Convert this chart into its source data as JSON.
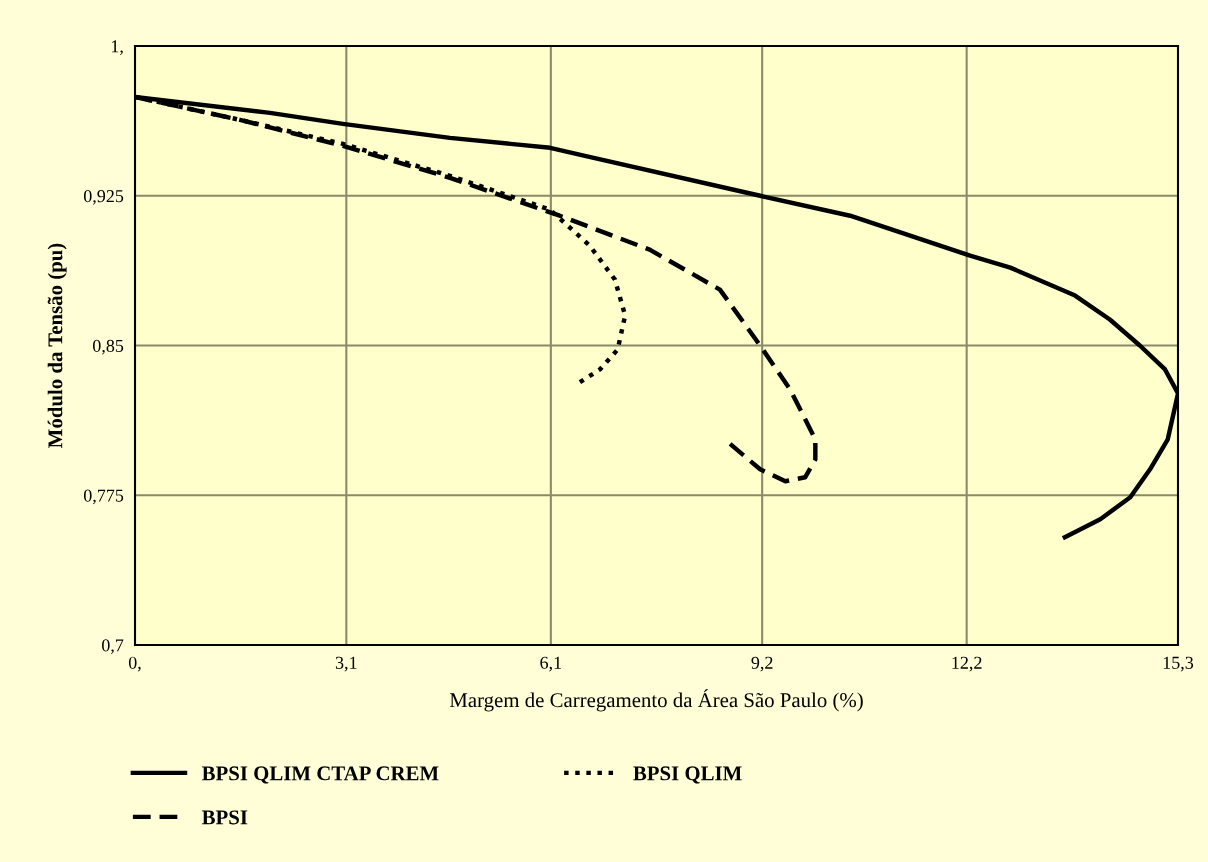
{
  "chart_data": {
    "type": "line",
    "xlabel": "Margem de Carregamento da Área São Paulo (%)",
    "ylabel": "Módulo da Tensão (pu)",
    "xlim": [
      0,
      15.3
    ],
    "ylim": [
      0.7,
      1
    ],
    "xticks": [
      {
        "value": 0,
        "label": "0,"
      },
      {
        "value": 3.1,
        "label": "3,1"
      },
      {
        "value": 6.1,
        "label": "6,1"
      },
      {
        "value": 9.2,
        "label": "9,2"
      },
      {
        "value": 12.2,
        "label": "12,2"
      },
      {
        "value": 15.3,
        "label": "15,3"
      }
    ],
    "yticks": [
      {
        "value": 0.7,
        "label": "0,7"
      },
      {
        "value": 0.775,
        "label": "0,775"
      },
      {
        "value": 0.85,
        "label": "0,85"
      },
      {
        "value": 0.925,
        "label": "0,925"
      },
      {
        "value": 1,
        "label": "1,"
      }
    ],
    "grid": true,
    "legend": "bottom",
    "marker": "none",
    "series": [
      {
        "name": "BPSI QLIM CTAP CREM",
        "color": "#000000",
        "line_style": "solid",
        "x": [
          0,
          1.98,
          3.05,
          4.62,
          6.09,
          6.6,
          9.17,
          10.49,
          12.25,
          12.84,
          13.79,
          14.3,
          14.74,
          15.11,
          15.3,
          15.15,
          14.89,
          14.6,
          14.16,
          13.64
        ],
        "values": [
          0.9745,
          0.9665,
          0.961,
          0.954,
          0.949,
          0.945,
          0.925,
          0.915,
          0.895,
          0.889,
          0.875,
          0.863,
          0.85,
          0.838,
          0.826,
          0.803,
          0.788,
          0.774,
          0.763,
          0.754
        ]
      },
      {
        "name": "BPSI",
        "color": "#000000",
        "line_style": "dashed",
        "x": [
          0,
          1.54,
          3.05,
          4.62,
          6.23,
          7.55,
          8.58,
          9.17,
          9.61,
          9.98,
          9.98,
          9.83,
          9.54,
          9.17,
          8.65
        ],
        "values": [
          0.9745,
          0.963,
          0.95,
          0.934,
          0.915,
          0.898,
          0.878,
          0.85,
          0.828,
          0.803,
          0.793,
          0.784,
          0.782,
          0.788,
          0.803
        ]
      },
      {
        "name": "BPSI QLIM",
        "color": "#000000",
        "line_style": "dotted",
        "x": [
          0,
          1.54,
          3.05,
          4.62,
          6.09,
          6.67,
          7.04,
          7.19,
          7.08,
          6.82,
          6.45
        ],
        "values": [
          0.9745,
          0.963,
          0.951,
          0.935,
          0.918,
          0.9,
          0.883,
          0.865,
          0.848,
          0.838,
          0.83
        ]
      }
    ]
  }
}
